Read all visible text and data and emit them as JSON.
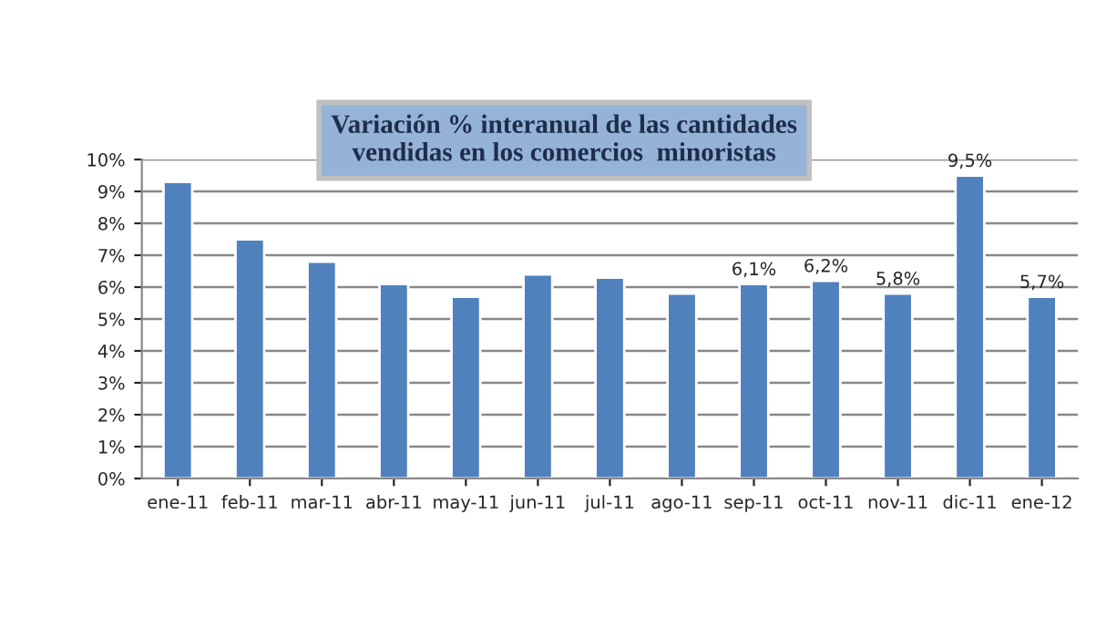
{
  "chart_data": {
    "type": "bar",
    "title": "Variación % interanual de las cantidades\nvendidas en los comercios  minoristas",
    "categories": [
      "ene-11",
      "feb-11",
      "mar-11",
      "abr-11",
      "may-11",
      "jun-11",
      "jul-11",
      "ago-11",
      "sep-11",
      "oct-11",
      "nov-11",
      "dic-11",
      "ene-12"
    ],
    "values": [
      9.3,
      7.5,
      6.8,
      6.1,
      5.7,
      6.4,
      6.3,
      5.8,
      6.1,
      6.2,
      5.8,
      9.5,
      5.7
    ],
    "value_labels": [
      null,
      null,
      null,
      null,
      null,
      null,
      null,
      null,
      "6,1%",
      "6,2%",
      "5,8%",
      "9,5%",
      "5,7%"
    ],
    "color": "#4f81bd",
    "ylim": [
      0,
      10
    ],
    "yticks": [
      {
        "value": 0,
        "label": "0%"
      },
      {
        "value": 1,
        "label": "1%"
      },
      {
        "value": 2,
        "label": "2%"
      },
      {
        "value": 3,
        "label": "3%"
      },
      {
        "value": 4,
        "label": "4%"
      },
      {
        "value": 5,
        "label": "5%"
      },
      {
        "value": 6,
        "label": "6%"
      },
      {
        "value": 7,
        "label": "7%"
      },
      {
        "value": 8,
        "label": "8%"
      },
      {
        "value": 9,
        "label": "9%"
      },
      {
        "value": 10,
        "label": "10%"
      }
    ],
    "grid": "y",
    "legend": false
  }
}
